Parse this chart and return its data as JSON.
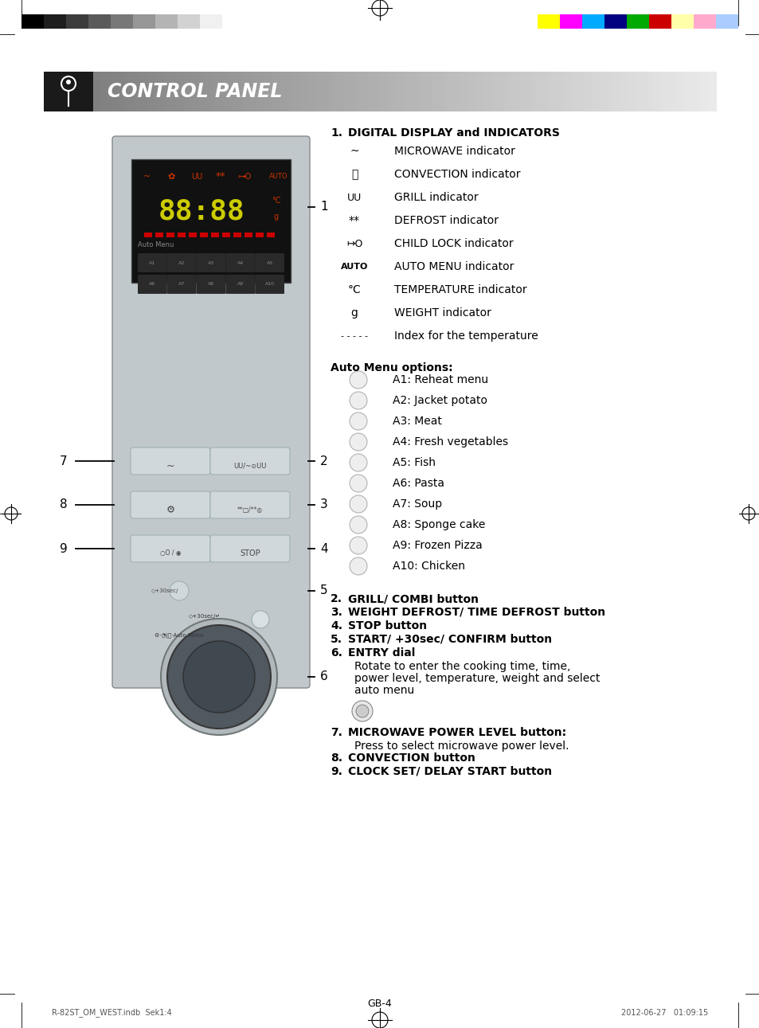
{
  "page_title": "CONTROL PANEL",
  "bg_color": "#ffffff",
  "header_bg_dark": "#1a1a1a",
  "header_text": "CONTROL PANEL",
  "header_text_color": "#ffffff",
  "section1_title_num": "1.",
  "section1_title_text": "DIGITAL DISPLAY and INDICATORS",
  "indicators": [
    {
      "text": "MICROWAVE indicator"
    },
    {
      "text": "CONVECTION indicator"
    },
    {
      "text": "GRILL indicator"
    },
    {
      "text": "DEFROST indicator"
    },
    {
      "text": "CHILD LOCK indicator"
    },
    {
      "text": "AUTO MENU indicator"
    },
    {
      "text": "TEMPERATURE indicator"
    },
    {
      "text": "WEIGHT indicator"
    },
    {
      "text": "Index for the temperature"
    }
  ],
  "auto_menu_title": "Auto Menu options:",
  "auto_menu_items": [
    "A1: Reheat menu",
    "A2: Jacket potato",
    "A3: Meat",
    "A4: Fresh vegetables",
    "A5: Fish",
    "A6: Pasta",
    "A7: Soup",
    "A8: Sponge cake",
    "A9: Frozen Pizza",
    "A10: Chicken"
  ],
  "numbered_items": [
    {
      "num": "2.",
      "text": "GRILL/ COMBI button",
      "bold": true,
      "indent": false
    },
    {
      "num": "3.",
      "text": "WEIGHT DEFROST/ TIME DEFROST button",
      "bold": true,
      "indent": false
    },
    {
      "num": "4.",
      "text": "STOP button",
      "bold": true,
      "indent": false
    },
    {
      "num": "5.",
      "text": "START/ +30sec/ CONFIRM button",
      "bold": true,
      "indent": false
    },
    {
      "num": "6.",
      "text": "ENTRY dial",
      "bold": true,
      "indent": false
    },
    {
      "num": "",
      "text": "Rotate to enter the cooking time, time,",
      "bold": false,
      "indent": true
    },
    {
      "num": "",
      "text": "power level, temperature, weight and select",
      "bold": false,
      "indent": true
    },
    {
      "num": "",
      "text": "auto menu",
      "bold": false,
      "indent": true
    },
    {
      "num": "7.",
      "text": "MICROWAVE POWER LEVEL button:",
      "bold": true,
      "indent": false
    },
    {
      "num": "",
      "text": "Press to select microwave power level.",
      "bold": false,
      "indent": true
    },
    {
      "num": "8.",
      "text": "CONVECTION button",
      "bold": true,
      "indent": false
    },
    {
      "num": "9.",
      "text": "CLOCK SET/ DELAY START button",
      "bold": true,
      "indent": false
    }
  ],
  "footer_text": "GB-4",
  "footer_file": "R-82ST_OM_WEST.indb  Sek1:4",
  "footer_date": "2012-06-27   01:09:15",
  "color_bar_colors": [
    "#ffff00",
    "#ff00ff",
    "#00aaff",
    "#000080",
    "#00aa00",
    "#cc0000",
    "#ffffaa",
    "#ffaacc",
    "#aaccff"
  ],
  "gray_bar_colors": [
    "#000000",
    "#1e1e1e",
    "#3c3c3c",
    "#5a5a5a",
    "#787878",
    "#969696",
    "#b4b4b4",
    "#d2d2d2",
    "#f0f0f0"
  ]
}
